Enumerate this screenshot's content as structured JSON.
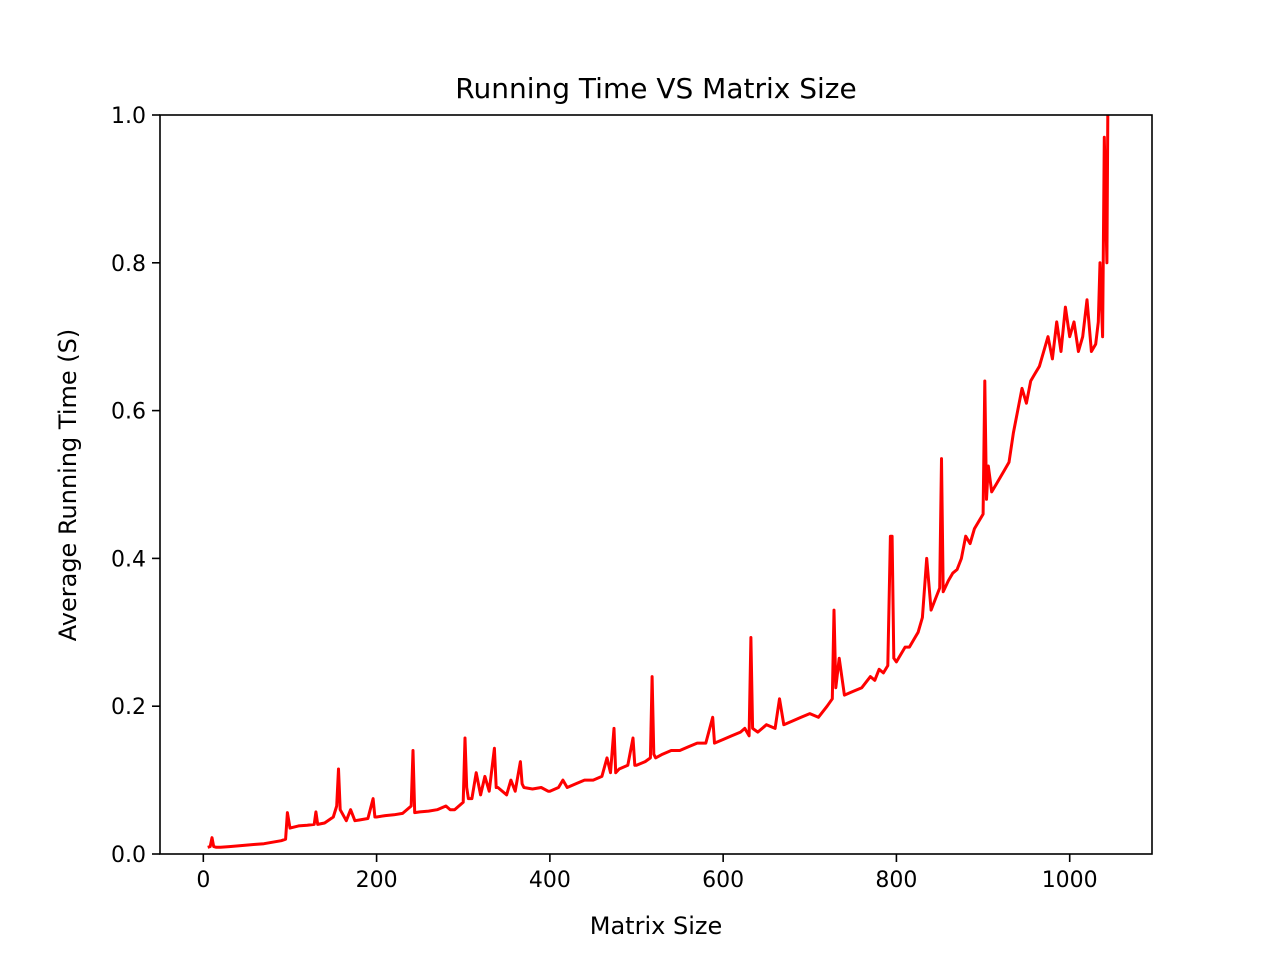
{
  "chart_data": {
    "type": "line",
    "title": "Running Time VS Matrix Size",
    "xlabel": "Matrix Size",
    "ylabel": "Average Running Time (S)",
    "xlim": [
      -50,
      1095
    ],
    "ylim": [
      0,
      1.0
    ],
    "xticks": [
      0,
      200,
      400,
      600,
      800,
      1000
    ],
    "xtick_labels": [
      "0",
      "200",
      "400",
      "600",
      "800",
      "1000"
    ],
    "yticks": [
      0.0,
      0.2,
      0.4,
      0.6,
      0.8,
      1.0
    ],
    "ytick_labels": [
      "0.0",
      "0.2",
      "0.4",
      "0.6",
      "0.8",
      "1.0"
    ],
    "grid": false,
    "line_color": "#ff0000",
    "series": [
      {
        "x": [
          5,
          8,
          10,
          12,
          15,
          20,
          30,
          40,
          50,
          60,
          70,
          80,
          90,
          95,
          97,
          100,
          110,
          120,
          128,
          130,
          132,
          140,
          150,
          154,
          156,
          158,
          165,
          170,
          175,
          180,
          190,
          196,
          198,
          200,
          210,
          220,
          230,
          240,
          242,
          244,
          250,
          260,
          270,
          280,
          285,
          290,
          300,
          302,
          304,
          306,
          310,
          315,
          320,
          325,
          330,
          336,
          338,
          340,
          350,
          355,
          360,
          366,
          368,
          370,
          380,
          390,
          398,
          400,
          410,
          415,
          420,
          430,
          440,
          450,
          460,
          466,
          470,
          474,
          476,
          480,
          490,
          496,
          498,
          500,
          510,
          516,
          518,
          520,
          522,
          530,
          540,
          550,
          560,
          570,
          580,
          588,
          590,
          600,
          610,
          620,
          625,
          630,
          632,
          634,
          640,
          650,
          660,
          665,
          670,
          680,
          690,
          700,
          710,
          720,
          726,
          728,
          730,
          734,
          740,
          750,
          760,
          770,
          775,
          780,
          785,
          790,
          793,
          795,
          797,
          800,
          810,
          815,
          820,
          825,
          830,
          835,
          840,
          845,
          850,
          852,
          854,
          860,
          865,
          870,
          875,
          880,
          885,
          890,
          895,
          900,
          902,
          904,
          906,
          910,
          915,
          920,
          925,
          930,
          935,
          940,
          945,
          950,
          955,
          960,
          965,
          970,
          975,
          980,
          985,
          990,
          995,
          1000,
          1005,
          1010,
          1015,
          1020,
          1025,
          1030,
          1033,
          1035,
          1038,
          1040,
          1042,
          1043,
          1044
        ],
        "y": [
          0.009,
          0.01,
          0.022,
          0.01,
          0.009,
          0.009,
          0.01,
          0.011,
          0.012,
          0.013,
          0.014,
          0.016,
          0.018,
          0.02,
          0.056,
          0.035,
          0.038,
          0.039,
          0.04,
          0.057,
          0.04,
          0.042,
          0.05,
          0.065,
          0.115,
          0.06,
          0.045,
          0.06,
          0.045,
          0.046,
          0.048,
          0.075,
          0.05,
          0.05,
          0.052,
          0.053,
          0.055,
          0.065,
          0.14,
          0.056,
          0.057,
          0.058,
          0.06,
          0.065,
          0.06,
          0.06,
          0.07,
          0.157,
          0.09,
          0.075,
          0.075,
          0.11,
          0.08,
          0.105,
          0.085,
          0.143,
          0.09,
          0.09,
          0.08,
          0.1,
          0.085,
          0.125,
          0.095,
          0.09,
          0.088,
          0.09,
          0.085,
          0.085,
          0.09,
          0.1,
          0.09,
          0.095,
          0.1,
          0.1,
          0.105,
          0.13,
          0.11,
          0.17,
          0.11,
          0.115,
          0.12,
          0.157,
          0.12,
          0.12,
          0.125,
          0.13,
          0.24,
          0.135,
          0.13,
          0.135,
          0.14,
          0.14,
          0.145,
          0.15,
          0.15,
          0.185,
          0.15,
          0.155,
          0.16,
          0.165,
          0.17,
          0.16,
          0.293,
          0.17,
          0.165,
          0.175,
          0.17,
          0.21,
          0.175,
          0.18,
          0.185,
          0.19,
          0.185,
          0.2,
          0.21,
          0.33,
          0.225,
          0.265,
          0.215,
          0.22,
          0.225,
          0.24,
          0.235,
          0.25,
          0.245,
          0.255,
          0.43,
          0.43,
          0.265,
          0.26,
          0.28,
          0.28,
          0.29,
          0.3,
          0.32,
          0.4,
          0.33,
          0.345,
          0.36,
          0.535,
          0.355,
          0.37,
          0.38,
          0.385,
          0.4,
          0.43,
          0.42,
          0.44,
          0.45,
          0.46,
          0.64,
          0.48,
          0.525,
          0.49,
          0.5,
          0.51,
          0.52,
          0.53,
          0.57,
          0.6,
          0.63,
          0.61,
          0.64,
          0.65,
          0.66,
          0.68,
          0.7,
          0.67,
          0.72,
          0.68,
          0.74,
          0.7,
          0.72,
          0.68,
          0.7,
          0.75,
          0.68,
          0.69,
          0.72,
          0.8,
          0.7,
          0.97,
          0.85,
          0.8,
          1.0
        ]
      }
    ]
  }
}
